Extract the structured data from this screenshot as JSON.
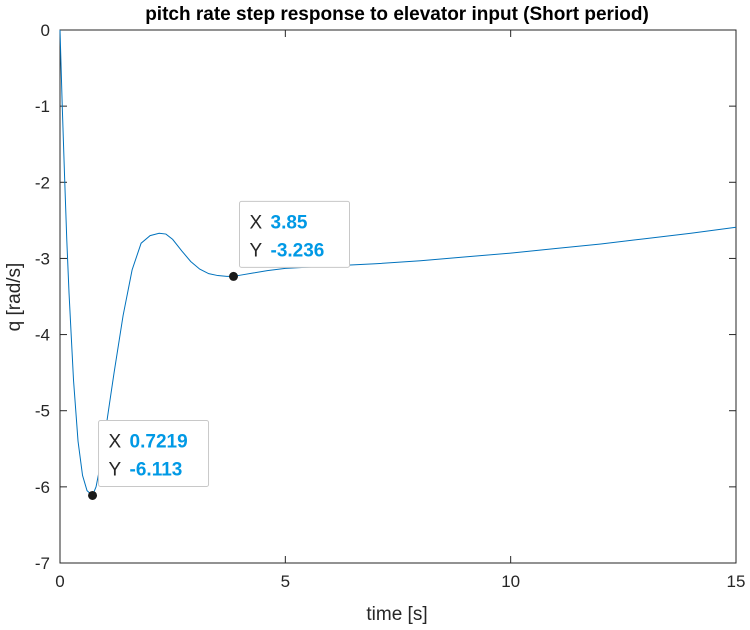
{
  "chart_data": {
    "type": "line",
    "title": "pitch rate step response to elevator input (Short period)",
    "xlabel": "time [s]",
    "ylabel": "q [rad/s]",
    "xlim": [
      0,
      15
    ],
    "ylim": [
      -7,
      0
    ],
    "xticks": [
      0,
      5,
      10,
      15
    ],
    "yticks": [
      0,
      -1,
      -2,
      -3,
      -4,
      -5,
      -6,
      -7
    ],
    "grid": false,
    "series": [
      {
        "color": "#0072BD",
        "x": [
          0,
          0.05,
          0.1,
          0.15,
          0.2,
          0.3,
          0.4,
          0.5,
          0.6,
          0.7219,
          0.8,
          0.9,
          1.0,
          1.1,
          1.2,
          1.4,
          1.6,
          1.8,
          2.0,
          2.2,
          2.35,
          2.5,
          2.7,
          2.9,
          3.1,
          3.3,
          3.5,
          3.7,
          3.85,
          4.0,
          4.3,
          4.6,
          5.0,
          6.0,
          7.0,
          8.0,
          9.0,
          10.0,
          11.0,
          12.0,
          13.0,
          14.0,
          15.0
        ],
        "y": [
          0,
          -1.0,
          -1.9,
          -2.75,
          -3.45,
          -4.6,
          -5.4,
          -5.85,
          -6.05,
          -6.113,
          -6.0,
          -5.7,
          -5.3,
          -4.9,
          -4.5,
          -3.75,
          -3.15,
          -2.8,
          -2.7,
          -2.67,
          -2.68,
          -2.75,
          -2.9,
          -3.04,
          -3.14,
          -3.2,
          -3.225,
          -3.235,
          -3.236,
          -3.22,
          -3.19,
          -3.16,
          -3.13,
          -3.1,
          -3.07,
          -3.03,
          -2.98,
          -2.93,
          -2.87,
          -2.81,
          -2.74,
          -2.67,
          -2.59
        ]
      }
    ],
    "datatips": [
      {
        "x_key": "X",
        "x_value": "0.7219",
        "y_key": "Y",
        "y_value": "-6.113",
        "x": 0.7219,
        "y": -6.113
      },
      {
        "x_key": "X",
        "x_value": "3.85",
        "y_key": "Y",
        "y_value": "-3.236",
        "x": 3.85,
        "y": -3.236
      }
    ],
    "colors": {
      "line": "#0072BD",
      "datatip_value": "#0099E5",
      "axes": "#262626"
    }
  }
}
